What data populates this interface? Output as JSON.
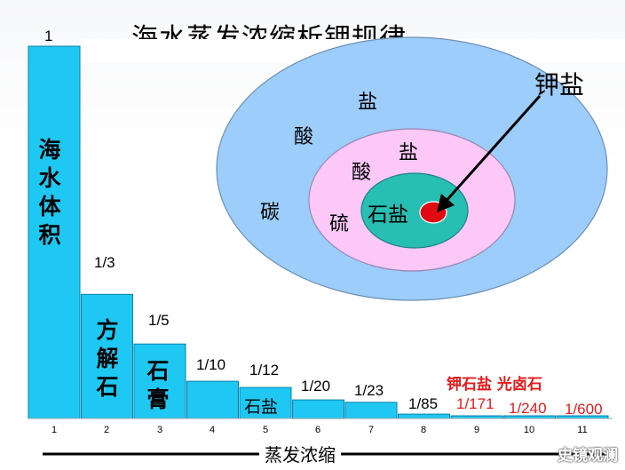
{
  "title": "海水蒸发浓缩析钾规律",
  "watermark": "史镜观澜",
  "colors": {
    "bar_fill": "#1ec8f2",
    "bar_stroke": "#0a7fa8",
    "outer_ring": "#9ccdfb",
    "middle_ring": "#fbc8f8",
    "inner_ring": "#27bfb3",
    "core_dot": "#e00a10",
    "highlight": "#e31b1b"
  },
  "chart_data": {
    "type": "bar",
    "categories": [
      "1",
      "2",
      "3",
      "4",
      "5",
      "6",
      "7",
      "8",
      "9",
      "10",
      "11"
    ],
    "values": [
      1,
      0.3333,
      0.2,
      0.1,
      0.0833,
      0.05,
      0.0435,
      0.0118,
      0.0058,
      0.0042,
      0.0017
    ],
    "value_labels": [
      "1",
      "1/3",
      "1/5",
      "1/10",
      "1/12",
      "1/20",
      "1/23",
      "1/85",
      "1/171",
      "1/240",
      "1/600"
    ],
    "xlabel": "蒸发浓缩",
    "ylim": [
      0,
      1
    ],
    "bar_texts": [
      {
        "index": 0,
        "text": "海水体积"
      },
      {
        "index": 1,
        "text": "方解石"
      },
      {
        "index": 2,
        "text": "石膏"
      },
      {
        "index": 4,
        "text": "石盐"
      }
    ],
    "red_group_label": "钾石盐 光卤石",
    "red_from_index": 8
  },
  "diagram": {
    "outer_ring_labels": [
      "盐",
      "酸",
      "碳"
    ],
    "middle_ring_labels": [
      "盐",
      "酸",
      "硫"
    ],
    "inner_label": "石盐",
    "pointer_label": "钾盐"
  }
}
